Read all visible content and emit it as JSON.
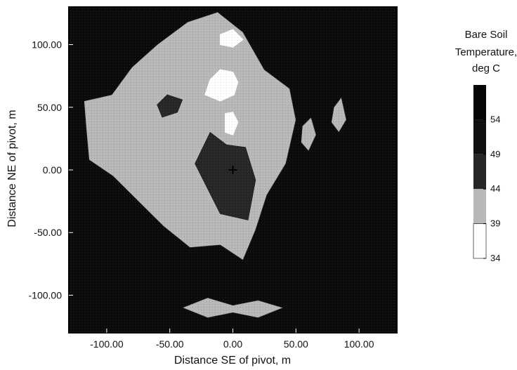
{
  "chart_data": {
    "type": "heatmap",
    "title": "",
    "xlabel": "Distance SE of pivot, m",
    "ylabel": "Distance NE of pivot, m",
    "xlim": [
      -130,
      130
    ],
    "ylim": [
      -130,
      130
    ],
    "x_ticks": [
      {
        "value": -100,
        "label": "-100.00"
      },
      {
        "value": -50,
        "label": "-50.00"
      },
      {
        "value": 0,
        "label": "0.00"
      },
      {
        "value": 50,
        "label": "50.00"
      },
      {
        "value": 100,
        "label": "100.00"
      }
    ],
    "y_ticks": [
      {
        "value": 100,
        "label": "100.00"
      },
      {
        "value": 50,
        "label": "50.00"
      },
      {
        "value": 0,
        "label": "0.00"
      },
      {
        "value": -50,
        "label": "-50.00"
      },
      {
        "value": -100,
        "label": "-100.00"
      }
    ],
    "legend": {
      "title_lines": [
        "Bare Soil",
        "Temperature,",
        "deg C"
      ],
      "range": [
        34,
        59
      ],
      "labels": [
        54,
        49,
        44,
        39,
        34
      ],
      "placement": "right"
    },
    "pivot_marker": {
      "x": 0,
      "y": 0,
      "symbol": "+"
    },
    "bands": [
      {
        "range": [
          34,
          39
        ],
        "color": "#ffffff"
      },
      {
        "range": [
          39,
          44
        ],
        "color": "#b8b8b8"
      },
      {
        "range": [
          44,
          49
        ],
        "color": "#262626"
      },
      {
        "range": [
          49,
          54
        ],
        "color": "#0f0f0f"
      },
      {
        "range": [
          54,
          59
        ],
        "color": "#050505"
      }
    ],
    "regions": [
      {
        "level": 41,
        "points": [
          [
            -116,
            30
          ],
          [
            -118,
            55
          ],
          [
            -96,
            60
          ],
          [
            -80,
            82
          ],
          [
            -60,
            100
          ],
          [
            -36,
            118
          ],
          [
            -12,
            126
          ],
          [
            8,
            110
          ],
          [
            25,
            80
          ],
          [
            45,
            65
          ],
          [
            50,
            40
          ],
          [
            42,
            5
          ],
          [
            27,
            -20
          ],
          [
            18,
            -48
          ],
          [
            8,
            -72
          ],
          [
            -10,
            -60
          ],
          [
            -34,
            -62
          ],
          [
            -55,
            -45
          ],
          [
            -75,
            -25
          ],
          [
            -95,
            -5
          ],
          [
            -114,
            8
          ]
        ]
      },
      {
        "level": 47,
        "points": [
          [
            -30,
            5
          ],
          [
            -18,
            30
          ],
          [
            -5,
            20
          ],
          [
            10,
            18
          ],
          [
            18,
            -8
          ],
          [
            12,
            -40
          ],
          [
            -10,
            -35
          ],
          [
            -25,
            -5
          ]
        ]
      },
      {
        "level": 36,
        "points": [
          [
            -22,
            60
          ],
          [
            -18,
            72
          ],
          [
            -10,
            80
          ],
          [
            0,
            78
          ],
          [
            4,
            70
          ],
          [
            1,
            60
          ],
          [
            -10,
            55
          ]
        ]
      },
      {
        "level": 36,
        "points": [
          [
            -10,
            108
          ],
          [
            0,
            112
          ],
          [
            8,
            104
          ],
          [
            0,
            98
          ],
          [
            -10,
            100
          ]
        ]
      },
      {
        "level": 36,
        "points": [
          [
            -6,
            45
          ],
          [
            0,
            46
          ],
          [
            4,
            38
          ],
          [
            0,
            28
          ],
          [
            -6,
            30
          ]
        ]
      },
      {
        "level": 47,
        "points": [
          [
            -60,
            52
          ],
          [
            -52,
            60
          ],
          [
            -40,
            56
          ],
          [
            -44,
            46
          ],
          [
            -56,
            42
          ]
        ]
      },
      {
        "level": 41,
        "points": [
          [
            55,
            35
          ],
          [
            62,
            42
          ],
          [
            66,
            28
          ],
          [
            60,
            15
          ],
          [
            54,
            22
          ]
        ]
      },
      {
        "level": 41,
        "points": [
          [
            80,
            50
          ],
          [
            86,
            58
          ],
          [
            90,
            40
          ],
          [
            84,
            30
          ],
          [
            78,
            38
          ]
        ]
      },
      {
        "level": 41,
        "points": [
          [
            -40,
            -110
          ],
          [
            -20,
            -102
          ],
          [
            0,
            -108
          ],
          [
            20,
            -104
          ],
          [
            40,
            -110
          ],
          [
            20,
            -118
          ],
          [
            0,
            -114
          ],
          [
            -20,
            -118
          ]
        ]
      }
    ]
  }
}
